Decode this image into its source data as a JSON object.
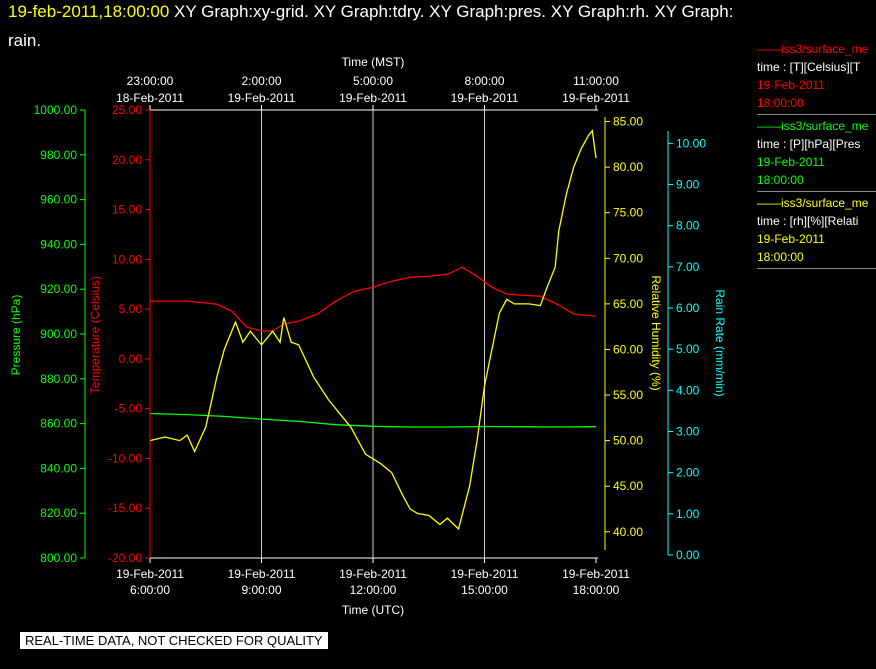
{
  "title": {
    "timestamp": "19-feb-2011,18:00:00",
    "line1_rest": "  XY Graph:xy-grid.  XY Graph:tdry.  XY Graph:pres.  XY Graph:rh.  XY Graph:",
    "line2": "rain."
  },
  "legend": [
    {
      "line": "——iss3/surface_me",
      "desc": "time : [T][Celsius][T",
      "date": "19-Feb-2011",
      "time": "18:00:00",
      "color": "#ff0000"
    },
    {
      "line": "——iss3/surface_me",
      "desc": "time : [P][hPa][Pres",
      "date": "19-Feb-2011",
      "time": "18:00:00",
      "color": "#00ff00"
    },
    {
      "line": "——iss3/surface_me",
      "desc": "time : [rh][%][Relati",
      "date": "19-Feb-2011",
      "time": "18:00:00",
      "color": "#ffff00"
    }
  ],
  "quality_note": "REAL-TIME DATA, NOT CHECKED FOR QUALITY",
  "chart_data": {
    "type": "line",
    "x_bottom": {
      "label": "Time (UTC)",
      "ticks": [
        {
          "date": "19-Feb-2011",
          "time": "6:00:00"
        },
        {
          "date": "19-Feb-2011",
          "time": "9:00:00"
        },
        {
          "date": "19-Feb-2011",
          "time": "12:00:00"
        },
        {
          "date": "19-Feb-2011",
          "time": "15:00:00"
        },
        {
          "date": "19-Feb-2011",
          "time": "18:00:00"
        }
      ],
      "range_hours_utc": [
        6,
        18
      ]
    },
    "x_top": {
      "label": "Time (MST)",
      "ticks": [
        {
          "time": "23:00:00",
          "date": "18-Feb-2011"
        },
        {
          "time": "2:00:00",
          "date": "19-Feb-2011"
        },
        {
          "time": "5:00:00",
          "date": "19-Feb-2011"
        },
        {
          "time": "8:00:00",
          "date": "19-Feb-2011"
        },
        {
          "time": "11:00:00",
          "date": "19-Feb-2011"
        }
      ]
    },
    "axes": {
      "pressure": {
        "label": "Pressure (hPa)",
        "color": "#00ff00",
        "range": [
          800,
          1000
        ],
        "ticks": [
          "800.00",
          "820.00",
          "840.00",
          "860.00",
          "880.00",
          "900.00",
          "920.00",
          "940.00",
          "960.00",
          "980.00",
          "1000.00"
        ]
      },
      "temperature": {
        "label": "Temperature (Celsius)",
        "color": "#ff0000",
        "range": [
          -20,
          25
        ],
        "ticks": [
          "-20.00",
          "-15.00",
          "-10.00",
          "-5.00",
          "0.00",
          "5.00",
          "10.00",
          "15.00",
          "20.00",
          "25.00"
        ]
      },
      "rh": {
        "label": "Relative Humidity (%)",
        "color": "#ffff00",
        "range": [
          38,
          85.5
        ],
        "ticks": [
          "40.00",
          "45.00",
          "50.00",
          "55.00",
          "60.00",
          "65.00",
          "70.00",
          "75.00",
          "80.00",
          "85.00"
        ]
      },
      "rain": {
        "label": "Rain Rate (mm/min)",
        "color": "#00ffff",
        "range": [
          0,
          10.3
        ],
        "ticks": [
          "0.00",
          "1.00",
          "2.00",
          "3.00",
          "4.00",
          "5.00",
          "6.00",
          "7.00",
          "8.00",
          "9.00",
          "10.00"
        ]
      }
    },
    "grid": "vertical-at-major-ticks",
    "series": [
      {
        "name": "iss3/surface_me time : [T][Celsius][T",
        "axis": "temperature",
        "color": "#ff0000",
        "points": [
          [
            6.0,
            5.8
          ],
          [
            7.0,
            5.8
          ],
          [
            7.8,
            5.5
          ],
          [
            8.2,
            4.8
          ],
          [
            8.6,
            3.2
          ],
          [
            9.0,
            2.8
          ],
          [
            9.3,
            2.8
          ],
          [
            9.6,
            3.5
          ],
          [
            10.0,
            3.8
          ],
          [
            10.5,
            4.5
          ],
          [
            11.0,
            5.8
          ],
          [
            11.5,
            6.8
          ],
          [
            12.0,
            7.2
          ],
          [
            12.5,
            7.8
          ],
          [
            13.0,
            8.2
          ],
          [
            13.5,
            8.3
          ],
          [
            14.0,
            8.5
          ],
          [
            14.4,
            9.2
          ],
          [
            14.8,
            8.3
          ],
          [
            15.2,
            7.2
          ],
          [
            15.6,
            6.5
          ],
          [
            16.0,
            6.4
          ],
          [
            16.5,
            6.3
          ],
          [
            17.0,
            5.4
          ],
          [
            17.4,
            4.5
          ],
          [
            18.0,
            4.3
          ]
        ]
      },
      {
        "name": "iss3/surface_me time : [P][hPa][Pres",
        "axis": "pressure",
        "color": "#00ff00",
        "points": [
          [
            6.0,
            864.5
          ],
          [
            7.0,
            864.0
          ],
          [
            8.0,
            863.2
          ],
          [
            9.0,
            862.0
          ],
          [
            10.0,
            861.0
          ],
          [
            11.0,
            859.5
          ],
          [
            12.0,
            858.8
          ],
          [
            13.0,
            858.5
          ],
          [
            14.0,
            858.5
          ],
          [
            15.0,
            858.7
          ],
          [
            16.0,
            858.6
          ],
          [
            17.0,
            858.5
          ],
          [
            18.0,
            858.6
          ]
        ]
      },
      {
        "name": "iss3/surface_me time : [rh][%][Relati",
        "axis": "rh",
        "color": "#ffff00",
        "points": [
          [
            6.0,
            50.0
          ],
          [
            6.4,
            50.4
          ],
          [
            6.8,
            50.0
          ],
          [
            7.0,
            50.6
          ],
          [
            7.2,
            48.8
          ],
          [
            7.5,
            51.5
          ],
          [
            7.8,
            57.0
          ],
          [
            8.0,
            60.0
          ],
          [
            8.3,
            63.0
          ],
          [
            8.5,
            60.8
          ],
          [
            8.7,
            62.0
          ],
          [
            9.0,
            60.5
          ],
          [
            9.3,
            62.0
          ],
          [
            9.5,
            60.8
          ],
          [
            9.6,
            63.5
          ],
          [
            9.8,
            60.8
          ],
          [
            10.0,
            60.5
          ],
          [
            10.4,
            57.0
          ],
          [
            10.8,
            54.5
          ],
          [
            11.1,
            53.0
          ],
          [
            11.4,
            51.5
          ],
          [
            11.8,
            48.5
          ],
          [
            12.2,
            47.5
          ],
          [
            12.5,
            46.5
          ],
          [
            12.8,
            44.0
          ],
          [
            13.0,
            42.5
          ],
          [
            13.2,
            42.0
          ],
          [
            13.5,
            41.8
          ],
          [
            13.8,
            40.8
          ],
          [
            14.0,
            41.5
          ],
          [
            14.3,
            40.3
          ],
          [
            14.6,
            45.0
          ],
          [
            14.8,
            50.0
          ],
          [
            15.0,
            56.0
          ],
          [
            15.2,
            60.0
          ],
          [
            15.4,
            64.0
          ],
          [
            15.6,
            65.5
          ],
          [
            15.8,
            65.0
          ],
          [
            16.2,
            65.0
          ],
          [
            16.5,
            64.8
          ],
          [
            16.7,
            67.0
          ],
          [
            16.9,
            69.0
          ],
          [
            17.0,
            73.0
          ],
          [
            17.2,
            77.0
          ],
          [
            17.4,
            80.0
          ],
          [
            17.6,
            82.0
          ],
          [
            17.8,
            83.5
          ],
          [
            17.9,
            84.0
          ],
          [
            18.0,
            81.0
          ]
        ]
      }
    ]
  }
}
